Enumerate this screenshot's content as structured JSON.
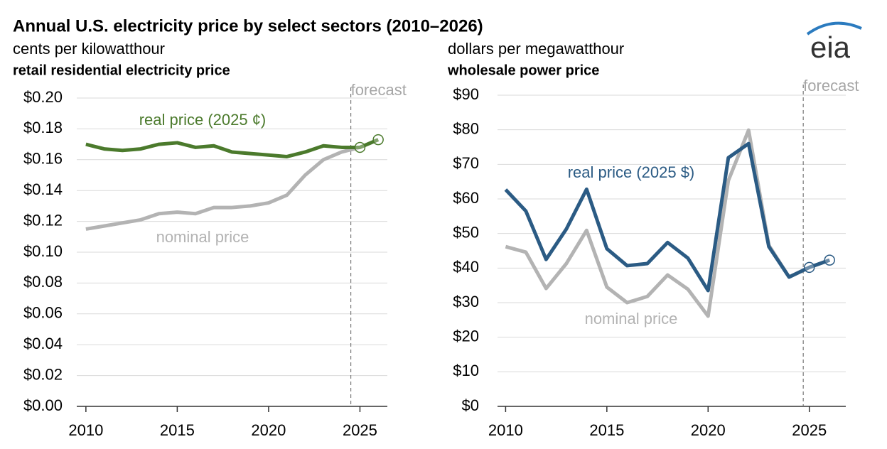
{
  "title": "Annual U.S. electricity price by select sectors (2010–2026)",
  "logo": "eia",
  "chart_data": [
    {
      "type": "line",
      "units": "cents per kilowatthour",
      "subtitle": "retail residential electricity price",
      "x": [
        2010,
        2011,
        2012,
        2013,
        2014,
        2015,
        2016,
        2017,
        2018,
        2019,
        2020,
        2021,
        2022,
        2023,
        2024,
        2025,
        2026
      ],
      "xlim": [
        2009.5,
        2026.5
      ],
      "xticks": [
        2010,
        2015,
        2020,
        2025
      ],
      "ylim": [
        0,
        0.2
      ],
      "yticks": [
        {
          "value": 0,
          "label": "$0.00"
        },
        {
          "value": 0.02,
          "label": "$0.02"
        },
        {
          "value": 0.04,
          "label": "$0.04"
        },
        {
          "value": 0.06,
          "label": "$0.06"
        },
        {
          "value": 0.08,
          "label": "$0.08"
        },
        {
          "value": 0.1,
          "label": "$0.10"
        },
        {
          "value": 0.12,
          "label": "$0.12"
        },
        {
          "value": 0.14,
          "label": "$0.14"
        },
        {
          "value": 0.16,
          "label": "$0.16"
        },
        {
          "value": 0.18,
          "label": "$0.18"
        },
        {
          "value": 0.2,
          "label": "$0.20"
        }
      ],
      "grid": true,
      "forecast_x": 2024.5,
      "forecast_label": "forecast",
      "series": [
        {
          "name": "nominal price",
          "color": "#b3b3b3",
          "values": [
            0.115,
            0.117,
            0.119,
            0.121,
            0.125,
            0.126,
            0.125,
            0.129,
            0.129,
            0.13,
            0.132,
            0.137,
            0.15,
            0.16,
            0.165,
            0.168,
            0.173
          ]
        },
        {
          "name": "real price (2025 ¢)",
          "color": "#4b7a2c",
          "values": [
            0.17,
            0.167,
            0.166,
            0.167,
            0.17,
            0.171,
            0.168,
            0.169,
            0.165,
            0.164,
            0.163,
            0.162,
            0.165,
            0.169,
            0.168,
            0.168,
            0.173
          ]
        }
      ]
    },
    {
      "type": "line",
      "units": "dollars per megawatthour",
      "subtitle": "wholesale power price",
      "x": [
        2010,
        2011,
        2012,
        2013,
        2014,
        2015,
        2016,
        2017,
        2018,
        2019,
        2020,
        2021,
        2022,
        2023,
        2024,
        2025,
        2026
      ],
      "xlim": [
        2009.6,
        2026.8
      ],
      "xticks": [
        2010,
        2015,
        2020,
        2025
      ],
      "ylim": [
        0,
        90
      ],
      "yticks": [
        {
          "value": 0,
          "label": "$0"
        },
        {
          "value": 10,
          "label": "$10"
        },
        {
          "value": 20,
          "label": "$20"
        },
        {
          "value": 30,
          "label": "$30"
        },
        {
          "value": 40,
          "label": "$40"
        },
        {
          "value": 50,
          "label": "$50"
        },
        {
          "value": 60,
          "label": "$60"
        },
        {
          "value": 70,
          "label": "$70"
        },
        {
          "value": 80,
          "label": "$80"
        },
        {
          "value": 90,
          "label": "$90"
        }
      ],
      "grid": true,
      "forecast_x": 2024.7,
      "forecast_label": "forecast",
      "series": [
        {
          "name": "nominal price",
          "color": "#b3b3b3",
          "values": [
            46.2,
            44.6,
            34.1,
            41.3,
            50.9,
            34.5,
            30.0,
            31.8,
            38.0,
            33.9,
            26.1,
            65.3,
            79.9,
            46.6,
            37.4,
            40.2,
            42.3
          ]
        },
        {
          "name": "real price (2025 $)",
          "color": "#2b5b84",
          "values": [
            62.7,
            56.5,
            42.5,
            51.3,
            62.8,
            45.6,
            40.7,
            41.3,
            47.4,
            42.9,
            33.5,
            71.9,
            76.0,
            46.2,
            37.4,
            40.2,
            42.3
          ]
        }
      ]
    }
  ]
}
